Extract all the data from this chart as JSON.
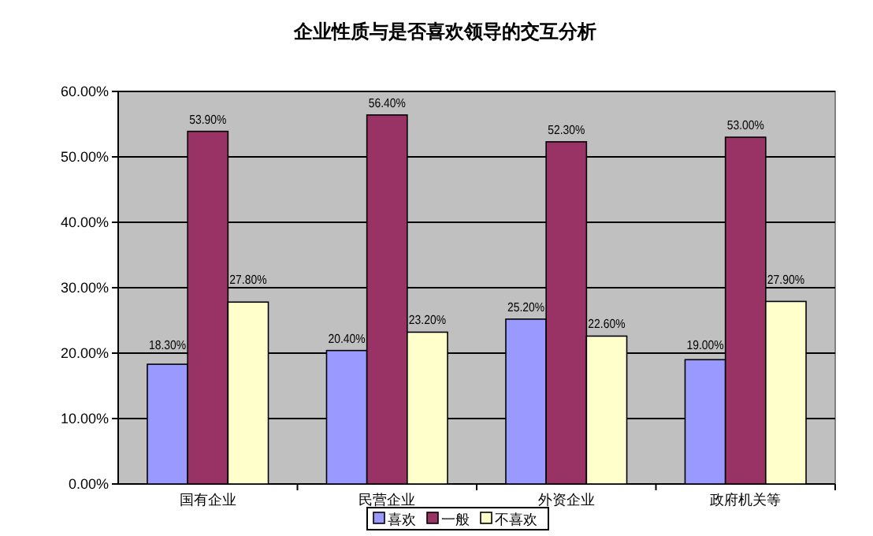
{
  "chart_data": {
    "type": "bar",
    "title": "企业性质与是否喜欢领导的交互分析",
    "categories": [
      "国有企业",
      "民营企业",
      "外资企业",
      "政府机关等"
    ],
    "series": [
      {
        "name": "喜欢",
        "color": "#9999ff",
        "values": [
          18.3,
          20.4,
          25.2,
          19.0
        ],
        "value_labels": [
          "18.30%",
          "20.40%",
          "25.20%",
          "19.00%"
        ]
      },
      {
        "name": "一般",
        "color": "#993366",
        "values": [
          53.9,
          56.4,
          52.3,
          53.0
        ],
        "value_labels": [
          "53.90%",
          "56.40%",
          "52.30%",
          "53.00%"
        ]
      },
      {
        "name": "不喜欢",
        "color": "#ffffcc",
        "values": [
          27.8,
          23.2,
          22.6,
          27.9
        ],
        "value_labels": [
          "27.80%",
          "23.20%",
          "22.60%",
          "27.90%"
        ]
      }
    ],
    "ylim": [
      0,
      60
    ],
    "yticks": [
      {
        "value": 0,
        "label": "0.00%"
      },
      {
        "value": 10,
        "label": "10.00%"
      },
      {
        "value": 20,
        "label": "20.00%"
      },
      {
        "value": 30,
        "label": "30.00%"
      },
      {
        "value": 40,
        "label": "40.00%"
      },
      {
        "value": 50,
        "label": "50.00%"
      },
      {
        "value": 60,
        "label": "60.00%"
      }
    ],
    "grid": "y",
    "legend": "bottom"
  }
}
